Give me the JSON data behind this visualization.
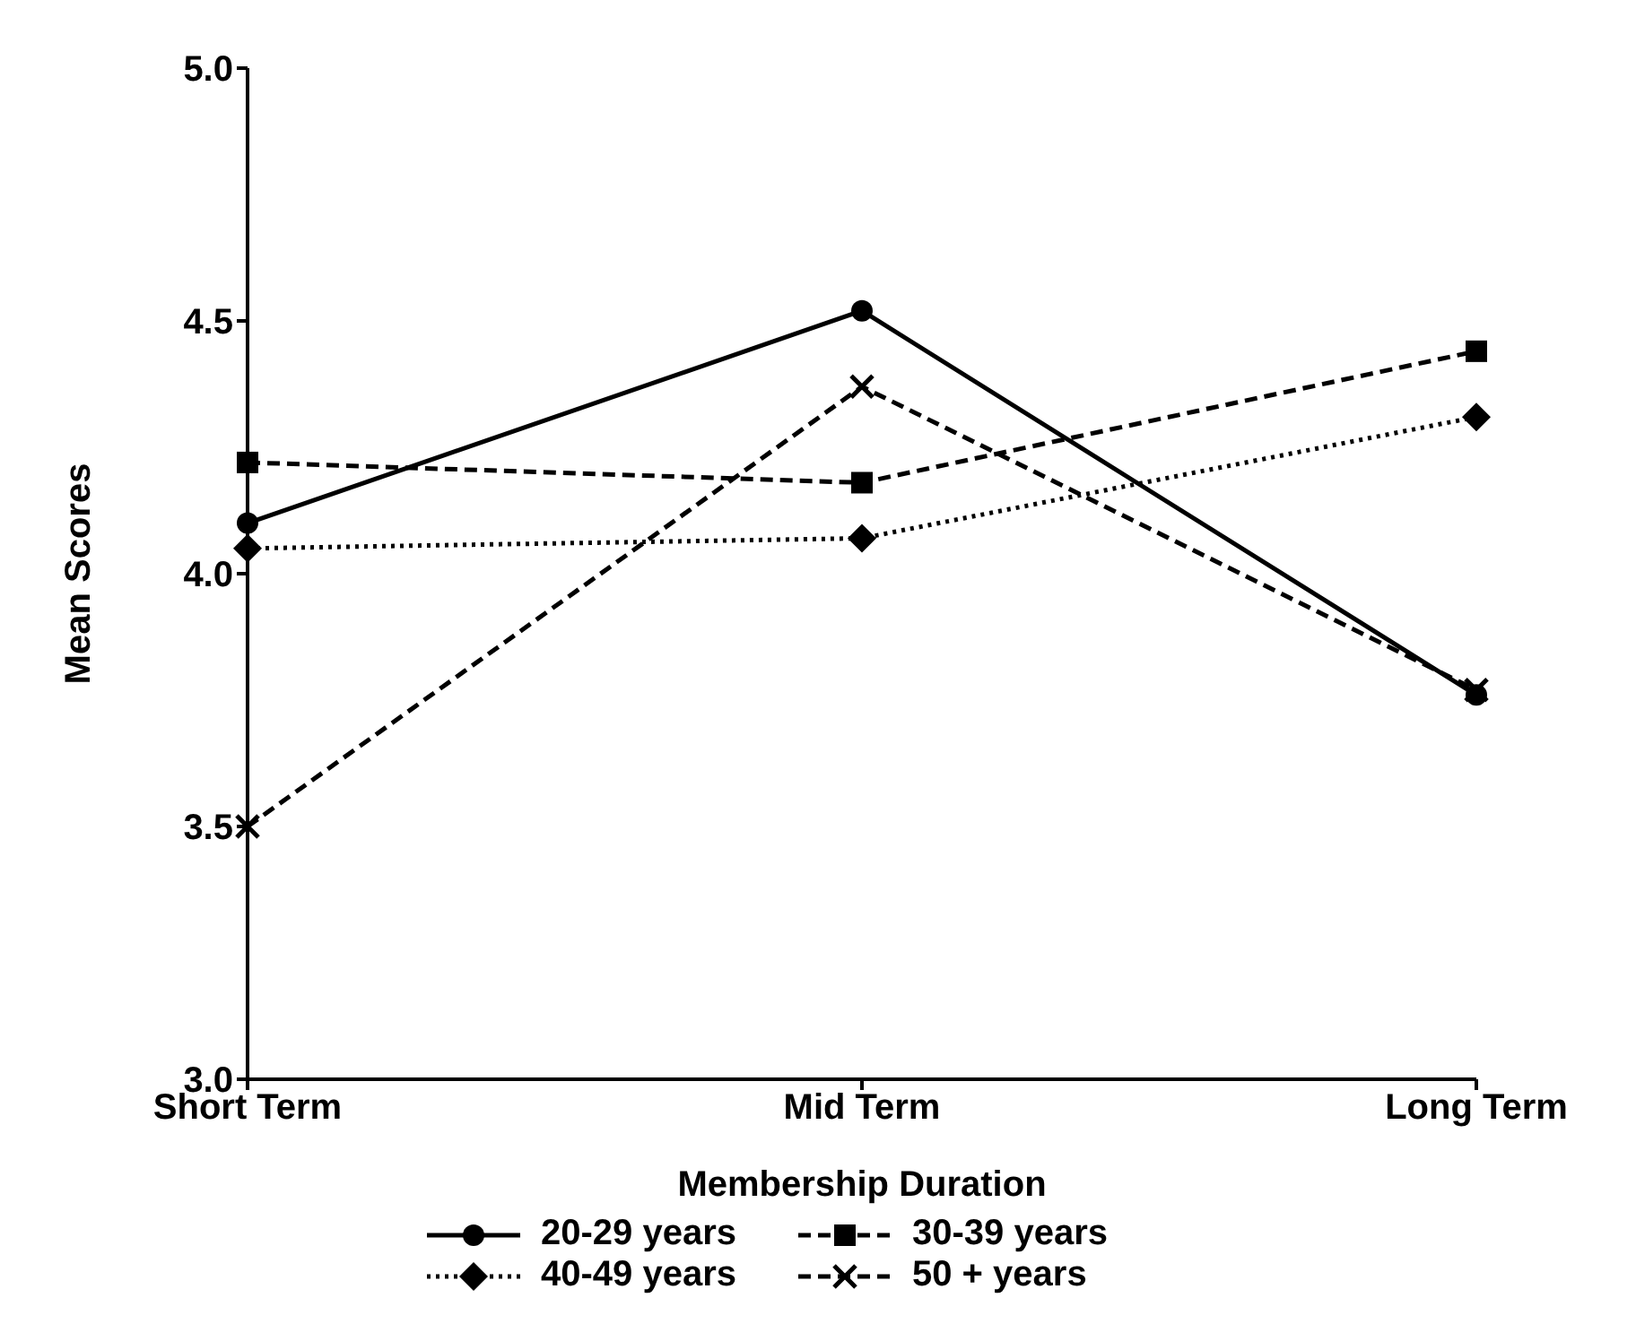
{
  "chart_data": {
    "type": "line",
    "xlabel": "Membership Duration",
    "ylabel": "Mean Scores",
    "categories": [
      "Short Term",
      "Mid Term",
      "Long Term"
    ],
    "series": [
      {
        "name": "20-29 years",
        "color": "#000000",
        "values": [
          4.1,
          4.52,
          3.76
        ],
        "marker": "circle",
        "line_style": "solid"
      },
      {
        "name": "30-39 years",
        "color": "#000000",
        "values": [
          4.22,
          4.18,
          4.44
        ],
        "marker": "square",
        "line_style": "dashed"
      },
      {
        "name": "40-49 years",
        "color": "#000000",
        "values": [
          4.05,
          4.07,
          4.31
        ],
        "marker": "diamond",
        "line_style": "dotted"
      },
      {
        "name": "50 + years",
        "color": "#000000",
        "values": [
          3.5,
          4.37,
          3.77
        ],
        "marker": "cross",
        "line_style": "dashed"
      }
    ],
    "ylim": [
      3,
      5
    ],
    "yticks": [
      {
        "value": 3,
        "label": "3.0"
      },
      {
        "value": 3.5,
        "label": "3.5"
      },
      {
        "value": 4,
        "label": "4.0"
      },
      {
        "value": 4.5,
        "label": "4.5"
      },
      {
        "value": 5,
        "label": "5.0"
      }
    ],
    "grid": false,
    "legend": "bottom"
  }
}
